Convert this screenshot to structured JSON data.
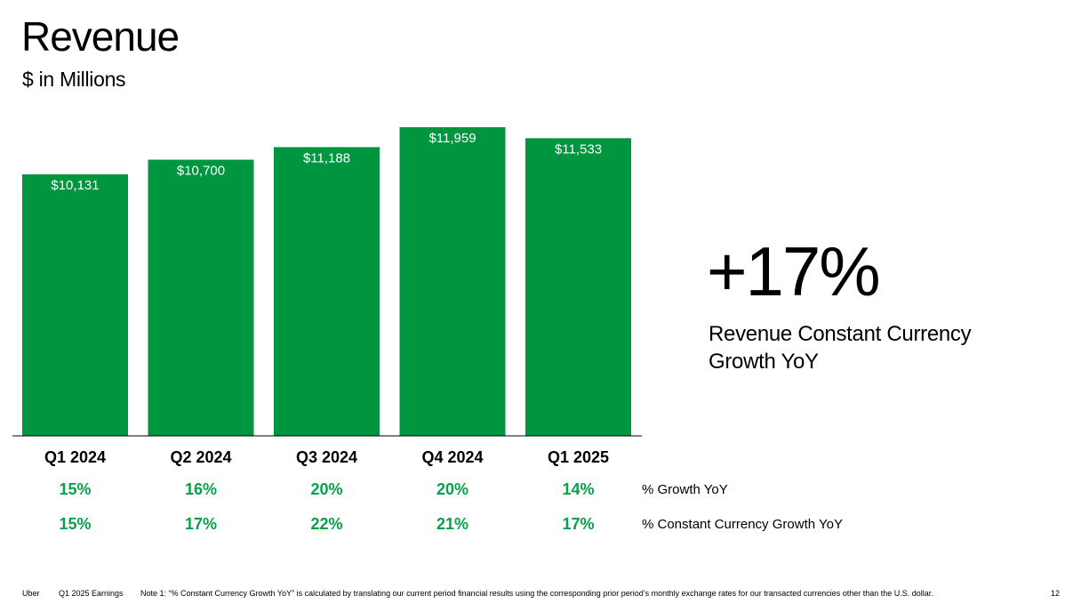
{
  "header": {
    "title": "Revenue",
    "subtitle": "$ in Millions"
  },
  "chart_data": {
    "type": "bar",
    "categories": [
      "Q1 2024",
      "Q2 2024",
      "Q3 2024",
      "Q4 2024",
      "Q1 2025"
    ],
    "values": [
      10131,
      10700,
      11188,
      11959,
      11533
    ],
    "value_labels": [
      "$10,131",
      "$10,700",
      "$11,188",
      "$11,959",
      "$11,533"
    ],
    "bar_color": "#00953f",
    "growth_color": "#06a14a",
    "ylabel": "$ in Millions",
    "ylim": [
      0,
      12000
    ],
    "grid": false,
    "rows": [
      {
        "label": "% Growth YoY",
        "values": [
          "15%",
          "16%",
          "20%",
          "20%",
          "14%"
        ]
      },
      {
        "label": "% Constant Currency Growth YoY",
        "values": [
          "15%",
          "17%",
          "22%",
          "21%",
          "17%"
        ]
      }
    ]
  },
  "callout": {
    "value": "+17%",
    "label": "Revenue Constant Currency Growth YoY"
  },
  "footer": {
    "brand": "Uber",
    "report": "Q1 2025 Earnings",
    "note": "Note 1: “% Constant Currency Growth YoY” is calculated by translating our current period financial results using the corresponding prior period’s monthly exchange rates for our transacted currencies other than the U.S. dollar.",
    "page": "12"
  }
}
